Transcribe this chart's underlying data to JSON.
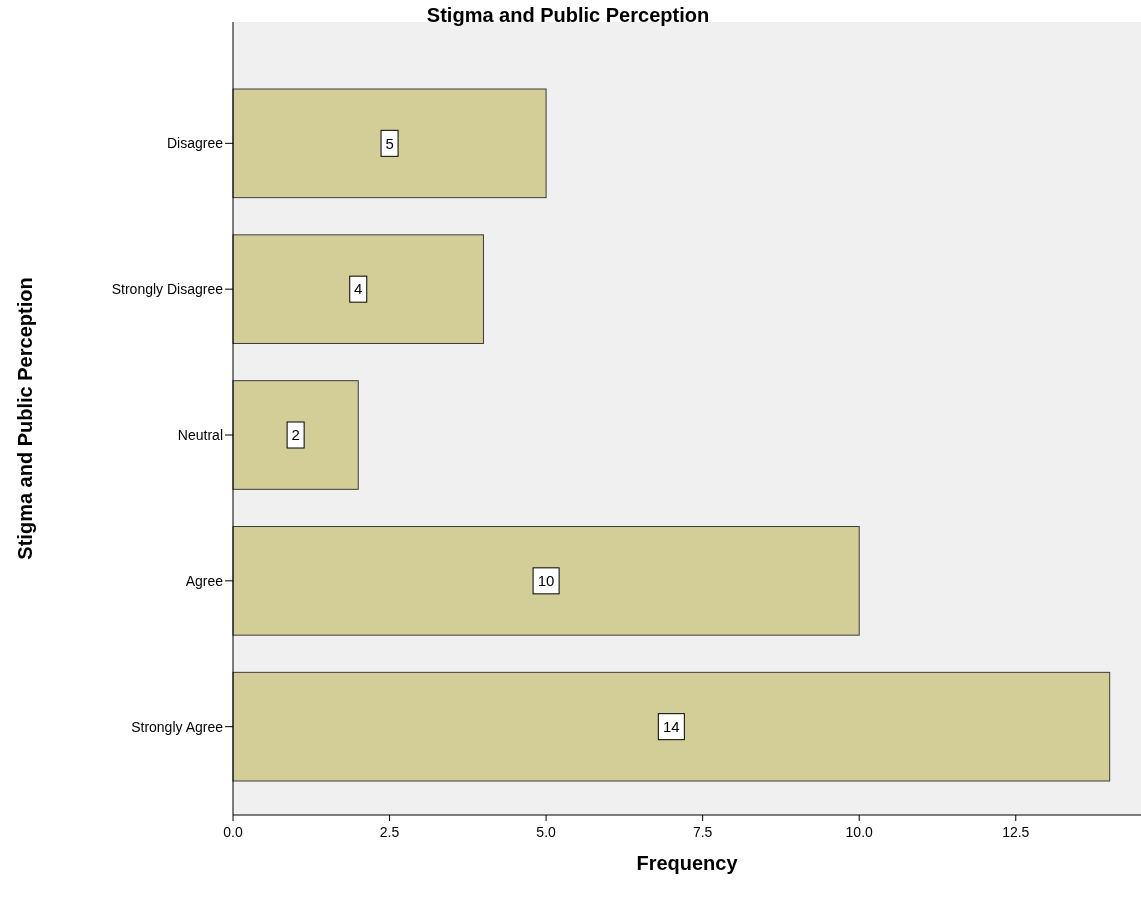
{
  "chart_data": {
    "type": "bar",
    "orientation": "horizontal",
    "title": "Stigma and Public Perception",
    "xlabel": "Frequency",
    "ylabel": "Stigma and Public Perception",
    "categories": [
      "Disagree",
      "Strongly Disagree",
      "Neutral",
      "Agree",
      "Strongly Agree"
    ],
    "values": [
      5,
      4,
      2,
      10,
      14
    ],
    "color": "#d3ce97",
    "data_labels": true,
    "grid": false,
    "xlim": [
      0,
      14.5
    ],
    "xticks": [
      {
        "value": 0,
        "label": "0.0"
      },
      {
        "value": 2.5,
        "label": "2.5"
      },
      {
        "value": 5,
        "label": "5.0"
      },
      {
        "value": 7.5,
        "label": "7.5"
      },
      {
        "value": 10,
        "label": "10.0"
      },
      {
        "value": 12.5,
        "label": "12.5"
      }
    ]
  }
}
